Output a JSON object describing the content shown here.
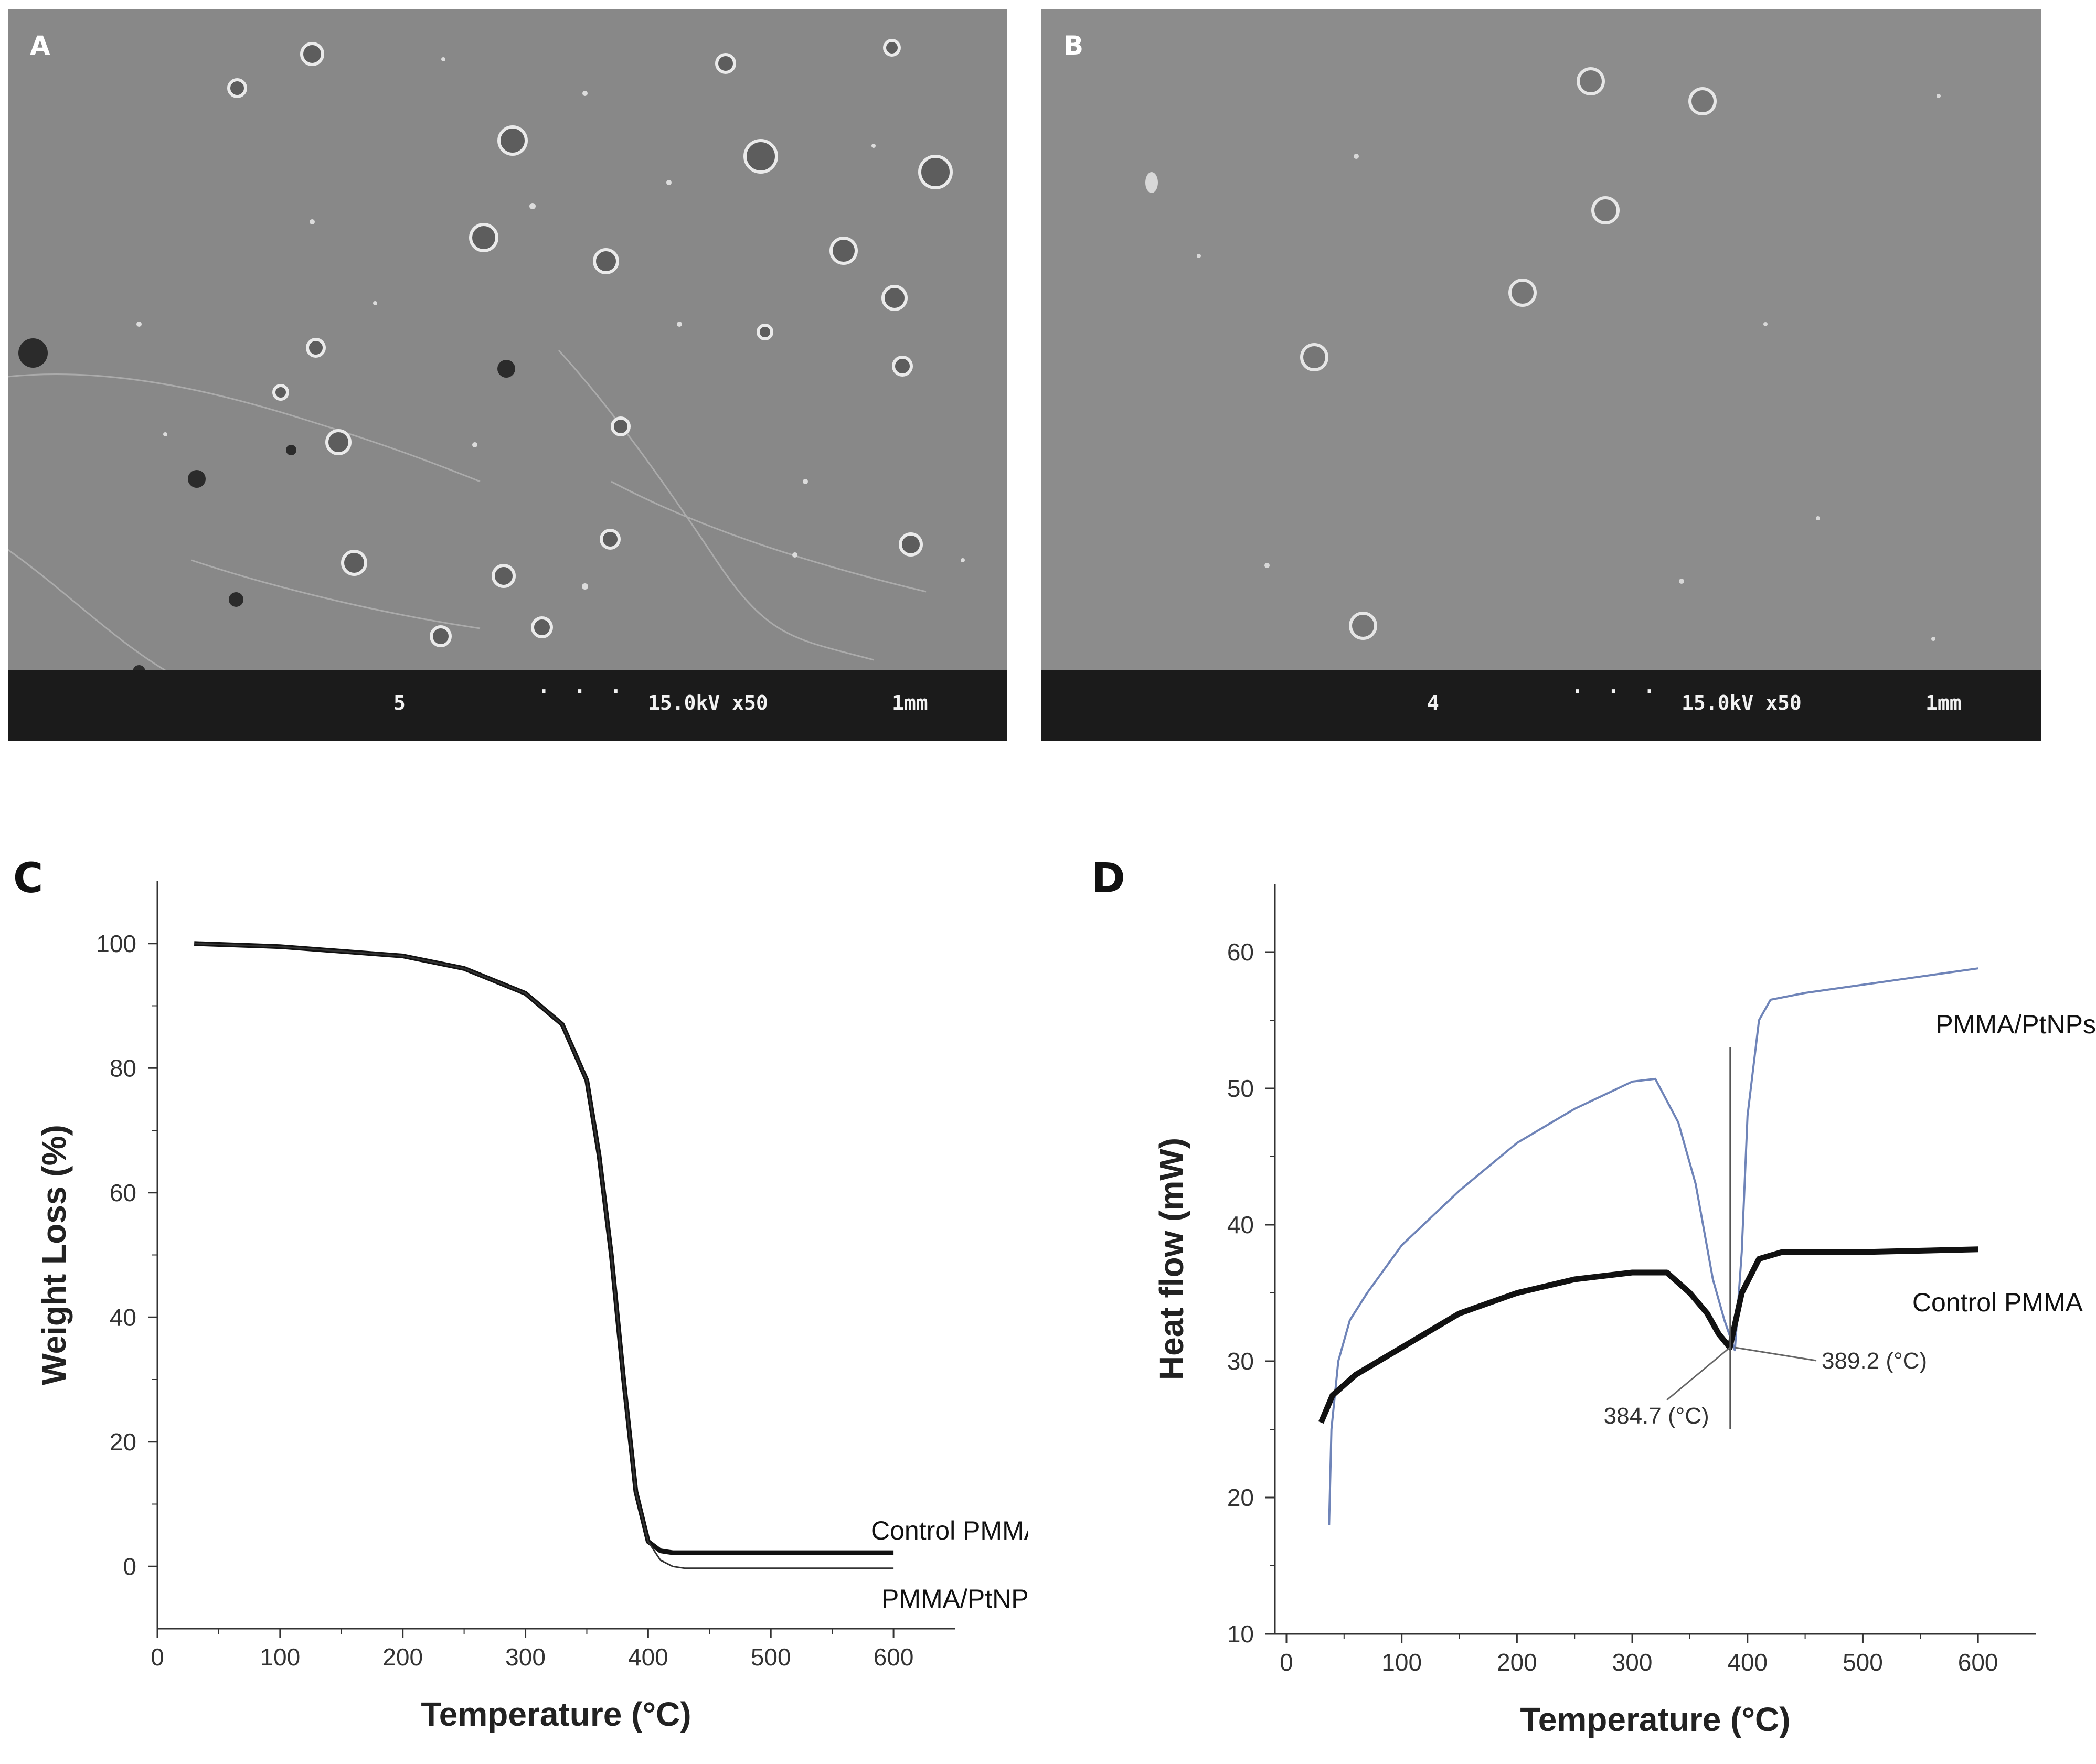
{
  "panels": {
    "A": {
      "letter": "A",
      "sem_info": {
        "left": "5",
        "right": "15.0kV x50",
        "scale": "1mm"
      }
    },
    "B": {
      "letter": "B",
      "sem_info": {
        "left": "4",
        "right": "15.0kV x50",
        "scale": "1mm"
      }
    },
    "C": {
      "letter": "C"
    },
    "D": {
      "letter": "D"
    }
  },
  "colors": {
    "sem_surface": "#8a8a8a",
    "sem_bar": "#1b1b1b",
    "control_line": "#111111",
    "ptnp_line_c": "#333333",
    "ptnp_line_d": "#6f84b8"
  },
  "chart_data": [
    {
      "panel": "C",
      "type": "line",
      "xlabel": "Temperature (°C)",
      "ylabel": "Weight Loss (%)",
      "xlim": [
        0,
        650
      ],
      "ylim": [
        -10,
        110
      ],
      "xticks": [
        0,
        100,
        200,
        300,
        400,
        500,
        600
      ],
      "yticks": [
        0,
        20,
        40,
        60,
        80,
        100
      ],
      "series": [
        {
          "name": "Control PMMA",
          "x": [
            30,
            100,
            200,
            250,
            300,
            330,
            350,
            360,
            370,
            380,
            390,
            400,
            410,
            420,
            500,
            600
          ],
          "y": [
            100,
            99.5,
            98,
            96,
            92,
            87,
            78,
            66,
            50,
            30,
            12,
            4,
            2.5,
            2.2,
            2.2,
            2.2
          ]
        },
        {
          "name": "PMMA/PtNPs",
          "x": [
            30,
            100,
            200,
            250,
            300,
            330,
            350,
            360,
            370,
            380,
            390,
            400,
            410,
            420,
            430,
            500,
            600
          ],
          "y": [
            100,
            99.5,
            98,
            96,
            92,
            87,
            78,
            66,
            50,
            30,
            12,
            4,
            1,
            0,
            -0.3,
            -0.3,
            -0.3
          ]
        }
      ],
      "labels": {
        "control": "Control PMMA",
        "ptnp": "PMMA/PtNPs"
      }
    },
    {
      "panel": "D",
      "type": "line",
      "xlabel": "Temperature (°C)",
      "ylabel": "Heat flow (mW)",
      "xlim": [
        -10,
        650
      ],
      "ylim": [
        10,
        65
      ],
      "xticks": [
        0,
        100,
        200,
        300,
        400,
        500,
        600
      ],
      "yticks": [
        10,
        20,
        30,
        40,
        50,
        60
      ],
      "series": [
        {
          "name": "PMMA/PtNPs",
          "x": [
            37,
            39,
            45,
            55,
            70,
            100,
            150,
            200,
            250,
            300,
            320,
            340,
            355,
            370,
            380,
            389,
            395,
            400,
            410,
            420,
            450,
            500,
            550,
            600
          ],
          "y": [
            18,
            25,
            30,
            33,
            35,
            38.5,
            42.5,
            46,
            48.5,
            50.5,
            50.7,
            47.5,
            43,
            36,
            33,
            30.8,
            38,
            48,
            55,
            56.5,
            57,
            57.6,
            58.2,
            58.8
          ]
        },
        {
          "name": "Control PMMA",
          "x": [
            30,
            40,
            60,
            100,
            150,
            200,
            250,
            300,
            330,
            350,
            365,
            375,
            384.7,
            395,
            410,
            430,
            500,
            600
          ],
          "y": [
            25.5,
            27.5,
            29,
            31,
            33.5,
            35,
            36,
            36.5,
            36.5,
            35,
            33.5,
            32,
            31,
            35,
            37.5,
            38,
            38,
            38.2
          ]
        }
      ],
      "labels": {
        "control": "Control PMMA",
        "ptnp": "PMMA/PtNPs"
      },
      "annotations": [
        {
          "text": "384.7 (°C)",
          "x": 384.7,
          "y": 31
        },
        {
          "text": "389.2 (°C)",
          "x": 389.2,
          "y": 31
        }
      ]
    }
  ]
}
